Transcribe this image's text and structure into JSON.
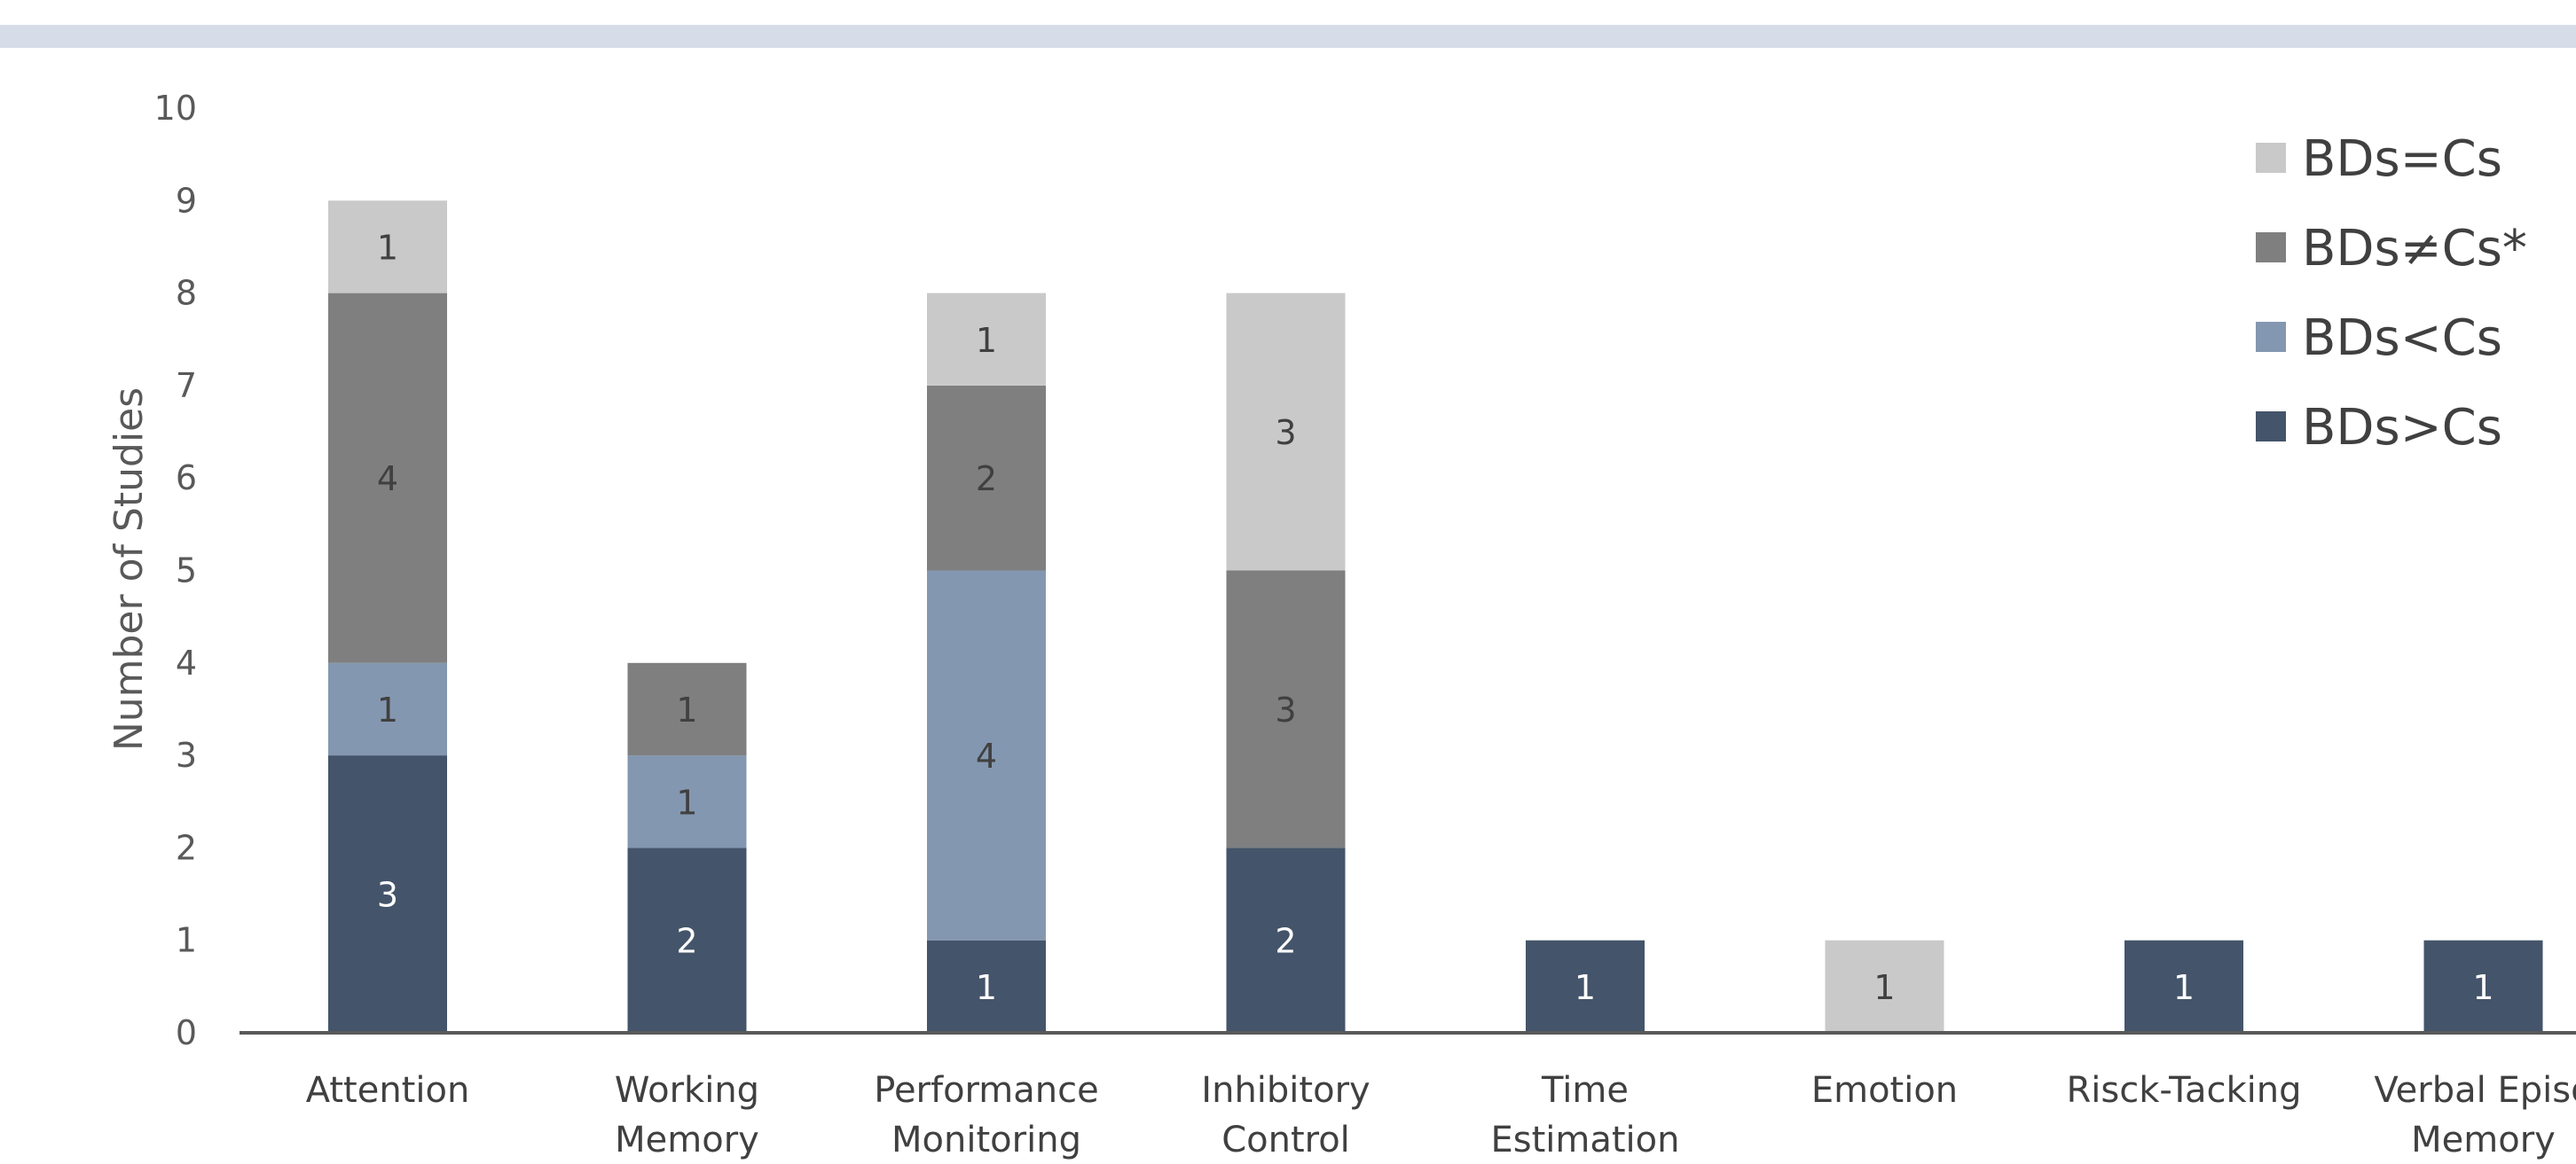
{
  "chart_data": {
    "type": "bar",
    "stacked": true,
    "ylabel": "Number of Studies",
    "xlabel": "",
    "ylim": [
      0,
      10
    ],
    "yticks": [
      "0",
      "1",
      "2",
      "3",
      "4",
      "5",
      "6",
      "7",
      "8",
      "9",
      "10"
    ],
    "categories": [
      [
        "Attention"
      ],
      [
        "Working",
        "Memory"
      ],
      [
        "Performance",
        "Monitoring"
      ],
      [
        "Inhibitory",
        "Control"
      ],
      [
        "Time",
        "Estimation"
      ],
      [
        "Emotion"
      ],
      [
        "Risck-Tacking"
      ],
      [
        "Verbal Episo",
        "Memory"
      ]
    ],
    "series": [
      {
        "name": "BDs>Cs",
        "color": "#44546a",
        "label_color": "#ffffff",
        "values": [
          3,
          2,
          1,
          2,
          1,
          0,
          1,
          1
        ]
      },
      {
        "name": "BDs<Cs",
        "color": "#8497b0",
        "label_color": "#404040",
        "values": [
          1,
          1,
          4,
          0,
          0,
          0,
          0,
          0
        ]
      },
      {
        "name": "BDs≠Cs*",
        "color": "#7f7f7f",
        "label_color": "#404040",
        "values": [
          4,
          1,
          2,
          3,
          0,
          0,
          0,
          0
        ]
      },
      {
        "name": "BDs=Cs",
        "color": "#c9c9c9",
        "label_color": "#404040",
        "values": [
          1,
          0,
          1,
          3,
          0,
          1,
          0,
          0
        ]
      }
    ],
    "legend": {
      "position": "top-right",
      "order": [
        "BDs=Cs",
        "BDs≠Cs*",
        "BDs<Cs",
        "BDs>Cs"
      ]
    },
    "grid": false
  }
}
